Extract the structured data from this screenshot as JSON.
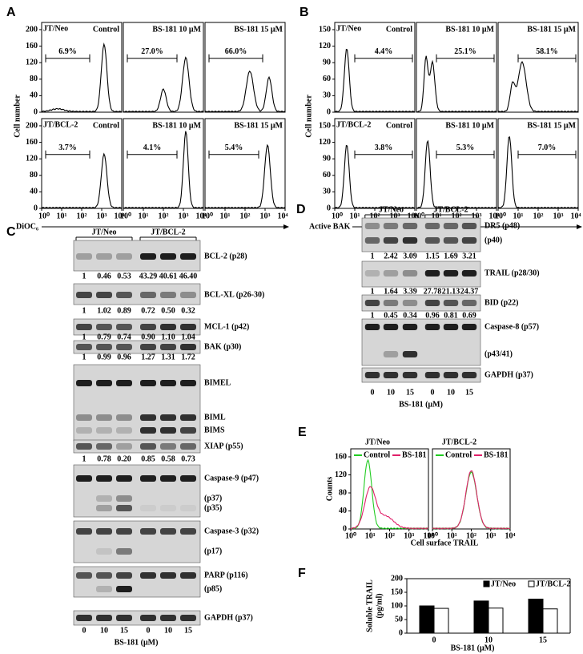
{
  "panel_a": {
    "letter": "A",
    "y_label": "Cell number",
    "x_label": "DiOC₆",
    "yticks": [
      "0",
      "40",
      "80",
      "120",
      "160",
      "200"
    ],
    "xticks": [
      "10⁰",
      "10¹",
      "10²",
      "10³",
      "10⁴"
    ],
    "rows": [
      {
        "label": "JT/Neo",
        "plots": [
          {
            "title": "Control",
            "gate": "6.9%"
          },
          {
            "title": "BS-181 10 μM",
            "gate": "27.0%"
          },
          {
            "title": "BS-181 15 μM",
            "gate": "66.0%"
          }
        ]
      },
      {
        "label": "JT/BCL-2",
        "plots": [
          {
            "title": "Control",
            "gate": "3.7%"
          },
          {
            "title": "BS-181 10 μM",
            "gate": "4.1%"
          },
          {
            "title": "BS-181 15 μM",
            "gate": "5.4%"
          }
        ]
      }
    ]
  },
  "panel_b": {
    "letter": "B",
    "y_label": "Cell number",
    "x_label": "Active BAK",
    "yticks": [
      "0",
      "30",
      "60",
      "90",
      "120",
      "150"
    ],
    "xticks": [
      "10⁰",
      "10¹",
      "10²",
      "10³",
      "10⁴"
    ],
    "rows": [
      {
        "label": "JT/Neo",
        "plots": [
          {
            "title": "Control",
            "gate": "4.4%"
          },
          {
            "title": "BS-181 10 μM",
            "gate": "25.1%"
          },
          {
            "title": "BS-181 15 μM",
            "gate": "58.1%"
          }
        ]
      },
      {
        "label": "JT/BCL-2",
        "plots": [
          {
            "title": "Control",
            "gate": "3.8%"
          },
          {
            "title": "BS-181 10 μM",
            "gate": "5.3%"
          },
          {
            "title": "BS-181 15 μM",
            "gate": "7.0%"
          }
        ]
      }
    ]
  },
  "panel_c": {
    "letter": "C",
    "groups": [
      "JT/Neo",
      "JT/BCL-2"
    ],
    "lanes": [
      "0",
      "10",
      "15",
      "0",
      "10",
      "15"
    ],
    "x_label": "BS-181 (μM)",
    "blots": [
      {
        "labels": [
          "BCL-2 (p28)"
        ],
        "quant": [
          "1",
          "0.46",
          "0.53",
          "43.29",
          "40.61",
          "46.40"
        ]
      },
      {
        "labels": [
          "BCL-XL (p26-30)"
        ],
        "quant": [
          "1",
          "1.02",
          "0.89",
          "0.72",
          "0.50",
          "0.32"
        ]
      },
      {
        "labels": [
          "MCL-1 (p42)"
        ],
        "quant": [
          "1",
          "0.79",
          "0.74",
          "0.90",
          "1.10",
          "1.04"
        ]
      },
      {
        "labels": [
          "BAK (p30)"
        ],
        "quant": [
          "1",
          "0.99",
          "0.96",
          "1.27",
          "1.31",
          "1.72"
        ]
      },
      {
        "labels": [
          "BIMEL",
          "BIML",
          "BIMS"
        ]
      },
      {
        "labels": [
          "XIAP (p55)"
        ],
        "quant": [
          "1",
          "0.78",
          "0.20",
          "0.85",
          "0.58",
          "0.73"
        ]
      },
      {
        "labels": [
          "Caspase-9 (p47)",
          "(p37)",
          "(p35)"
        ]
      },
      {
        "labels": [
          "Caspase-3 (p32)",
          "(p17)"
        ]
      },
      {
        "labels": [
          "PARP (p116)",
          "(p85)"
        ]
      },
      {
        "labels": [
          "GAPDH (p37)"
        ]
      }
    ]
  },
  "panel_d": {
    "letter": "D",
    "groups": [
      "JT/Neo",
      "JT/BCL-2"
    ],
    "lanes": [
      "0",
      "10",
      "15",
      "0",
      "10",
      "15"
    ],
    "x_label": "BS-181 (μM)",
    "blots": [
      {
        "labels": [
          "DR5 (p48)",
          "(p40)"
        ],
        "quant": [
          "1",
          "2.42",
          "3.09",
          "1.15",
          "1.69",
          "3.21"
        ]
      },
      {
        "labels": [
          "TRAIL (p28/30)"
        ],
        "quant": [
          "1",
          "1.64",
          "3.39",
          "27.78",
          "21.13",
          "24.37"
        ]
      },
      {
        "labels": [
          "BID (p22)"
        ],
        "quant": [
          "1",
          "0.45",
          "0.34",
          "0.96",
          "0.81",
          "0.69"
        ]
      },
      {
        "labels": [
          "Caspase-8 (p57)",
          "(p43/41)"
        ]
      },
      {
        "labels": [
          "GAPDH (p37)"
        ]
      }
    ]
  },
  "panel_e": {
    "letter": "E",
    "y_label": "Counts",
    "x_label": "Cell surface TRAIL",
    "yticks": [
      "0",
      "40",
      "80",
      "120",
      "160"
    ],
    "xticks": [
      "10⁰",
      "10¹",
      "10²",
      "10³",
      "10⁴"
    ],
    "legend": [
      {
        "name": "Control",
        "color": "#22cc22"
      },
      {
        "name": "BS-181",
        "color": "#e0206a"
      }
    ],
    "plots": [
      {
        "title": "JT/Neo"
      },
      {
        "title": "JT/BCL-2"
      }
    ]
  },
  "panel_f": {
    "letter": "F"
  },
  "chart_data": {
    "type": "bar",
    "y_label": [
      "Soluble TRAIL",
      "(pg/ml)"
    ],
    "x_label": "BS-181 (μM)",
    "categories": [
      "0",
      "10",
      "15"
    ],
    "series": [
      {
        "name": "JT/Neo",
        "color": "#000000",
        "values": [
          100,
          118,
          125
        ]
      },
      {
        "name": "JT/BCL-2",
        "color": "#ffffff",
        "values": [
          91,
          92,
          89
        ]
      }
    ],
    "ylim": [
      0,
      200
    ],
    "yticks": [
      0,
      50,
      100,
      150,
      200
    ],
    "legend": "top"
  }
}
